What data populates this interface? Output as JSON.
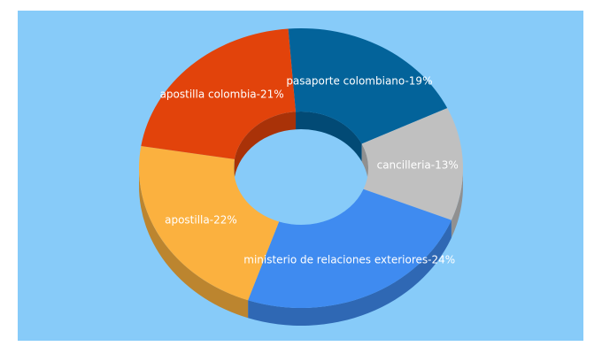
{
  "chart_data": {
    "type": "pie",
    "style": "3d-donut",
    "legend": "none",
    "background": "#87cbf9",
    "slices": [
      {
        "name": "pasaporte colombiano",
        "value": 19,
        "label": "pasaporte colombiano-19%",
        "color": "#03639a",
        "side": "#024a75"
      },
      {
        "name": "cancilleria",
        "value": 13,
        "label": "cancilleria-13%",
        "color": "#c0c0c0",
        "side": "#909090"
      },
      {
        "name": "ministerio de relaciones exteriores",
        "value": 24,
        "label": "ministerio de relaciones exteriores-24%",
        "color": "#3f8bf0",
        "side": "#2f68b4"
      },
      {
        "name": "apostilla",
        "value": 22,
        "label": "apostilla-22%",
        "color": "#fbb13f",
        "side": "#bc852f"
      },
      {
        "name": "apostilla colombia",
        "value": 21,
        "label": "apostilla colombia-21%",
        "color": "#e2430b",
        "side": "#a93208"
      }
    ]
  }
}
